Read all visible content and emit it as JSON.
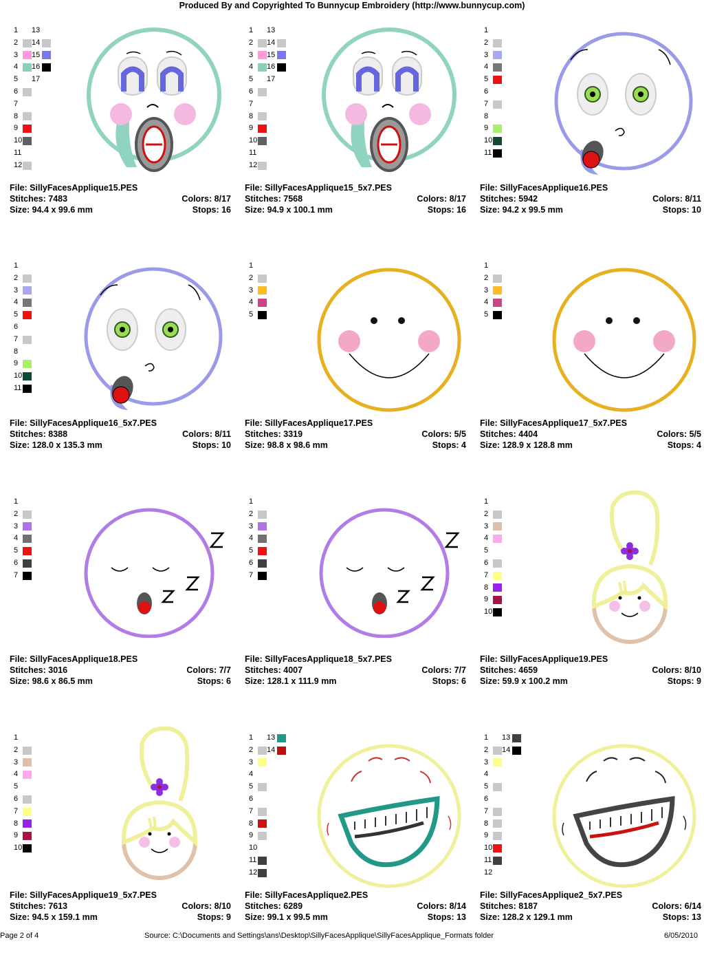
{
  "header": "Produced By and Copyrighted To Bunnycup Embroidery (http://www.bunnycup.com)",
  "footer": {
    "page": "Page 2 of 4",
    "source": "Source:  C:\\Documents and Settings\\ans\\Desktop\\SillyFacesApplique\\SillyFacesApplique_Formats folder",
    "date": "6/05/2010"
  },
  "labels": {
    "file": "File: ",
    "stitches": "Stitches: ",
    "size": "Size: ",
    "colors": "Colors: ",
    "stops": "Stops: "
  },
  "designs": [
    {
      "file": "SillyFacesApplique15.PES",
      "stitches": "7483",
      "size": "94.4 x 99.6 mm",
      "colors": "8/17",
      "stops": "16",
      "face": "shock",
      "legend": [
        [
          "1",
          ""
        ],
        [
          "2",
          "#c8c8c8"
        ],
        [
          "3",
          "#ff99dd"
        ],
        [
          "4",
          "#88d0b8"
        ],
        [
          "5",
          ""
        ],
        [
          "6",
          "#c8c8c8"
        ],
        [
          "7",
          ""
        ],
        [
          "8",
          "#c8c8c8"
        ],
        [
          "9",
          "#ee1111"
        ],
        [
          "10",
          "#606060"
        ],
        [
          "11",
          ""
        ],
        [
          "12",
          "#c8c8c8"
        ]
      ],
      "legend2": [
        [
          "13",
          ""
        ],
        [
          "14",
          "#c8c8c8"
        ],
        [
          "15",
          "#7777ee"
        ],
        [
          "16",
          "#000000"
        ],
        [
          "17",
          ""
        ]
      ]
    },
    {
      "file": "SillyFacesApplique15_5x7.PES",
      "stitches": "7568",
      "size": "94.9 x 100.1 mm",
      "colors": "8/17",
      "stops": "16",
      "face": "shock",
      "legend": [
        [
          "1",
          ""
        ],
        [
          "2",
          "#c8c8c8"
        ],
        [
          "3",
          "#ff99dd"
        ],
        [
          "4",
          "#88d0b8"
        ],
        [
          "5",
          ""
        ],
        [
          "6",
          "#c8c8c8"
        ],
        [
          "7",
          ""
        ],
        [
          "8",
          "#c8c8c8"
        ],
        [
          "9",
          "#ee1111"
        ],
        [
          "10",
          "#606060"
        ],
        [
          "11",
          ""
        ],
        [
          "12",
          "#c8c8c8"
        ]
      ],
      "legend2": [
        [
          "13",
          ""
        ],
        [
          "14",
          "#c8c8c8"
        ],
        [
          "15",
          "#7777ee"
        ],
        [
          "16",
          "#000000"
        ],
        [
          "17",
          ""
        ]
      ]
    },
    {
      "file": "SillyFacesApplique16.PES",
      "stitches": "5942",
      "size": "94.2 x 99.5 mm",
      "colors": "8/11",
      "stops": "10",
      "face": "whistle",
      "legend": [
        [
          "1",
          ""
        ],
        [
          "2",
          "#c8c8c8"
        ],
        [
          "3",
          "#a8a8f0"
        ],
        [
          "4",
          "#777777"
        ],
        [
          "5",
          "#ee1111"
        ],
        [
          "6",
          ""
        ],
        [
          "7",
          "#c8c8c8"
        ],
        [
          "8",
          ""
        ],
        [
          "9",
          "#aaf066"
        ],
        [
          "10",
          "#0f4a33"
        ],
        [
          "11",
          "#000000"
        ]
      ],
      "legend2": []
    },
    {
      "file": "SillyFacesApplique16_5x7.PES",
      "stitches": "8388",
      "size": "128.0 x 135.3 mm",
      "colors": "8/11",
      "stops": "10",
      "face": "whistle",
      "legend": [
        [
          "1",
          ""
        ],
        [
          "2",
          "#c8c8c8"
        ],
        [
          "3",
          "#a8a8f0"
        ],
        [
          "4",
          "#777777"
        ],
        [
          "5",
          "#ee1111"
        ],
        [
          "6",
          ""
        ],
        [
          "7",
          "#c8c8c8"
        ],
        [
          "8",
          ""
        ],
        [
          "9",
          "#aaf066"
        ],
        [
          "10",
          "#0f4a33"
        ],
        [
          "11",
          "#000000"
        ]
      ],
      "legend2": []
    },
    {
      "file": "SillyFacesApplique17.PES",
      "stitches": "3319",
      "size": "98.8 x 98.6 mm",
      "colors": "5/5",
      "stops": "4",
      "face": "smile",
      "legend": [
        [
          "1",
          ""
        ],
        [
          "2",
          "#c8c8c8"
        ],
        [
          "3",
          "#ffbb22"
        ],
        [
          "4",
          "#cc4488"
        ],
        [
          "5",
          "#000000"
        ]
      ],
      "legend2": []
    },
    {
      "file": "SillyFacesApplique17_5x7.PES",
      "stitches": "4404",
      "size": "128.9 x 128.8 mm",
      "colors": "5/5",
      "stops": "4",
      "face": "smile",
      "legend": [
        [
          "1",
          ""
        ],
        [
          "2",
          "#c8c8c8"
        ],
        [
          "3",
          "#ffbb22"
        ],
        [
          "4",
          "#cc4488"
        ],
        [
          "5",
          "#000000"
        ]
      ],
      "legend2": []
    },
    {
      "file": "SillyFacesApplique18.PES",
      "stitches": "3016",
      "size": "98.6 x 86.5 mm",
      "colors": "7/7",
      "stops": "6",
      "face": "sleep",
      "legend": [
        [
          "1",
          ""
        ],
        [
          "2",
          "#c8c8c8"
        ],
        [
          "3",
          "#b070e8"
        ],
        [
          "4",
          "#707070"
        ],
        [
          "5",
          "#ee1111"
        ],
        [
          "6",
          "#404040"
        ],
        [
          "7",
          "#000000"
        ]
      ],
      "legend2": []
    },
    {
      "file": "SillyFacesApplique18_5x7.PES",
      "stitches": "4007",
      "size": "128.1 x 111.9 mm",
      "colors": "7/7",
      "stops": "6",
      "face": "sleep",
      "legend": [
        [
          "1",
          ""
        ],
        [
          "2",
          "#c8c8c8"
        ],
        [
          "3",
          "#b070e8"
        ],
        [
          "4",
          "#707070"
        ],
        [
          "5",
          "#ee1111"
        ],
        [
          "6",
          "#404040"
        ],
        [
          "7",
          "#000000"
        ]
      ],
      "legend2": []
    },
    {
      "file": "SillyFacesApplique19.PES",
      "stitches": "4659",
      "size": "59.9 x 100.2 mm",
      "colors": "8/10",
      "stops": "9",
      "face": "girl",
      "legend": [
        [
          "1",
          ""
        ],
        [
          "2",
          "#c8c8c8"
        ],
        [
          "3",
          "#e0bfa8"
        ],
        [
          "4",
          "#ffaaee"
        ],
        [
          "5",
          ""
        ],
        [
          "6",
          "#c8c8c8"
        ],
        [
          "7",
          "#ffff88"
        ],
        [
          "8",
          "#9922ee"
        ],
        [
          "9",
          "#aa1144"
        ],
        [
          "10",
          "#000000"
        ]
      ],
      "legend2": []
    },
    {
      "file": "SillyFacesApplique19_5x7.PES",
      "stitches": "7613",
      "size": "94.5 x 159.1 mm",
      "colors": "8/10",
      "stops": "9",
      "face": "girl",
      "legend": [
        [
          "1",
          ""
        ],
        [
          "2",
          "#c8c8c8"
        ],
        [
          "3",
          "#e0bfa8"
        ],
        [
          "4",
          "#ffaaee"
        ],
        [
          "5",
          ""
        ],
        [
          "6",
          "#c8c8c8"
        ],
        [
          "7",
          "#ffff88"
        ],
        [
          "8",
          "#9922ee"
        ],
        [
          "9",
          "#aa1144"
        ],
        [
          "10",
          "#000000"
        ]
      ],
      "legend2": []
    },
    {
      "file": "SillyFacesApplique2.PES",
      "stitches": "6289",
      "size": "99.1 x 99.5 mm",
      "colors": "8/14",
      "stops": "13",
      "face": "laugh-teal",
      "legend": [
        [
          "1",
          ""
        ],
        [
          "2",
          "#c8c8c8"
        ],
        [
          "3",
          "#ffff88"
        ],
        [
          "4",
          ""
        ],
        [
          "5",
          "#c8c8c8"
        ],
        [
          "6",
          ""
        ],
        [
          "7",
          "#c8c8c8"
        ],
        [
          "8",
          "#cc1111"
        ],
        [
          "9",
          "#c8c8c8"
        ],
        [
          "10",
          ""
        ],
        [
          "11",
          "#404040"
        ],
        [
          "12",
          "#404040"
        ]
      ],
      "legend2": [
        [
          "13",
          "#229988"
        ],
        [
          "14",
          "#bb1111"
        ]
      ]
    },
    {
      "file": "SillyFacesApplique2_5x7.PES",
      "stitches": "8187",
      "size": "128.2 x 129.1 mm",
      "colors": "6/14",
      "stops": "13",
      "face": "laugh-grey",
      "legend": [
        [
          "1",
          ""
        ],
        [
          "2",
          "#c8c8c8"
        ],
        [
          "3",
          "#ffff88"
        ],
        [
          "4",
          ""
        ],
        [
          "5",
          "#c8c8c8"
        ],
        [
          "6",
          ""
        ],
        [
          "7",
          "#c8c8c8"
        ],
        [
          "8",
          "#c8c8c8"
        ],
        [
          "9",
          "#c8c8c8"
        ],
        [
          "10",
          "#ee1111"
        ],
        [
          "11",
          "#404040"
        ],
        [
          "12",
          ""
        ]
      ],
      "legend2": [
        [
          "13",
          "#404040"
        ],
        [
          "14",
          "#000000"
        ]
      ]
    }
  ]
}
